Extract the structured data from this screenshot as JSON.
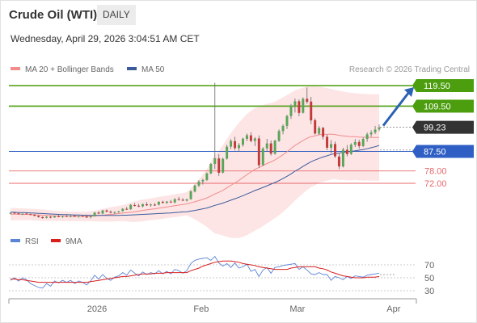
{
  "header": {
    "title": "Crude Oil (WTI)",
    "timeframe": "DAILY",
    "datetime": "Wednesday, April 29, 2026 3:04:51 AM CET"
  },
  "legend": {
    "ma20": "MA 20 + Bollinger Bands",
    "ma50": "MA 50",
    "credit": "Research © 2026 Trading Central",
    "rsi": "RSI",
    "rsi_ma": "9MA"
  },
  "colors": {
    "bull": "#5aa55a",
    "bear": "#c43a3a",
    "ma20": "#f08c8c",
    "bb_fill": "#fde0e0",
    "ma50": "#3a5a9c",
    "resistance": "#4c9e0e",
    "pivot": "#2f5fc4",
    "support": "#e8686c",
    "current": "#333333",
    "rsi": "#5b84d6",
    "rsi_ma": "#d91e1e",
    "arrow": "#2c62b3"
  },
  "chart_data": [
    {
      "type": "candlestick",
      "title": "",
      "x_labels": [
        "2026",
        "Feb",
        "Mar",
        "Apr"
      ],
      "ylim": [
        53,
        123
      ],
      "candles": [
        [
          57.6,
          58.0,
          57.0,
          57.6
        ],
        [
          57.7,
          57.9,
          57.2,
          57.4
        ],
        [
          57.4,
          57.8,
          56.8,
          57.0
        ],
        [
          57.1,
          57.4,
          56.6,
          57.2
        ],
        [
          57.3,
          57.7,
          56.9,
          57.1
        ],
        [
          57.0,
          57.3,
          56.5,
          56.7
        ],
        [
          56.8,
          57.0,
          56.0,
          56.2
        ],
        [
          56.2,
          56.4,
          55.3,
          55.6
        ],
        [
          55.6,
          55.9,
          54.8,
          55.1
        ],
        [
          55.2,
          56.0,
          54.9,
          55.8
        ],
        [
          55.7,
          56.1,
          55.0,
          55.3
        ],
        [
          55.4,
          56.2,
          55.2,
          56.0
        ],
        [
          56.0,
          56.6,
          55.5,
          55.7
        ],
        [
          55.8,
          56.3,
          55.2,
          56.1
        ],
        [
          56.1,
          56.5,
          55.6,
          55.9
        ],
        [
          55.9,
          56.4,
          55.4,
          56.2
        ],
        [
          56.3,
          56.7,
          55.7,
          55.8
        ],
        [
          55.8,
          56.3,
          55.3,
          56.1
        ],
        [
          56.1,
          56.5,
          55.6,
          55.9
        ],
        [
          55.9,
          56.3,
          55.1,
          55.4
        ],
        [
          55.5,
          56.1,
          55.0,
          55.9
        ],
        [
          56.0,
          58.0,
          55.8,
          57.8
        ],
        [
          57.8,
          58.4,
          57.0,
          57.3
        ],
        [
          57.3,
          59.1,
          57.0,
          58.8
        ],
        [
          58.8,
          59.3,
          57.9,
          58.2
        ],
        [
          58.2,
          58.8,
          57.4,
          57.7
        ],
        [
          57.8,
          58.3,
          57.0,
          58.1
        ],
        [
          58.0,
          58.6,
          57.6,
          58.4
        ],
        [
          58.5,
          59.9,
          58.2,
          59.6
        ],
        [
          59.6,
          60.5,
          59.0,
          59.3
        ],
        [
          59.4,
          61.9,
          59.1,
          61.5
        ],
        [
          61.4,
          62.4,
          60.7,
          61.1
        ],
        [
          61.1,
          62.0,
          60.4,
          60.7
        ],
        [
          60.8,
          62.1,
          60.3,
          61.9
        ],
        [
          61.8,
          62.8,
          61.0,
          61.3
        ],
        [
          61.3,
          62.1,
          60.6,
          61.7
        ],
        [
          61.6,
          62.4,
          61.0,
          61.5
        ],
        [
          61.6,
          63.3,
          61.2,
          63.0
        ],
        [
          63.0,
          63.6,
          62.1,
          62.5
        ],
        [
          62.5,
          63.4,
          62.0,
          63.1
        ],
        [
          63.1,
          63.9,
          62.4,
          62.7
        ],
        [
          62.7,
          64.7,
          62.3,
          64.3
        ],
        [
          64.3,
          65.4,
          63.6,
          64.1
        ],
        [
          64.0,
          64.8,
          63.3,
          63.6
        ],
        [
          63.6,
          64.5,
          63.1,
          64.2
        ],
        [
          64.3,
          68.5,
          64.0,
          68.1
        ],
        [
          68.0,
          71.4,
          67.6,
          70.9
        ],
        [
          70.9,
          73.5,
          70.2,
          72.8
        ],
        [
          72.9,
          74.2,
          71.4,
          73.6
        ],
        [
          73.6,
          77.3,
          73.1,
          76.8
        ],
        [
          76.8,
          81.8,
          76.4,
          81.4
        ],
        [
          81.4,
          120.9,
          79.0,
          84.2
        ],
        [
          84.1,
          86.2,
          75.6,
          77.1
        ],
        [
          77.2,
          84.5,
          76.8,
          83.9
        ],
        [
          84.0,
          90.7,
          83.5,
          89.8
        ],
        [
          89.8,
          93.5,
          88.6,
          92.6
        ],
        [
          92.5,
          94.6,
          88.0,
          89.1
        ],
        [
          89.1,
          91.6,
          87.4,
          90.6
        ],
        [
          90.7,
          94.2,
          89.8,
          93.7
        ],
        [
          93.6,
          96.2,
          92.5,
          95.4
        ],
        [
          95.3,
          96.8,
          91.9,
          92.6
        ],
        [
          92.6,
          94.5,
          90.1,
          93.8
        ],
        [
          93.8,
          95.3,
          79.5,
          80.8
        ],
        [
          80.9,
          89.6,
          80.4,
          88.9
        ],
        [
          89.0,
          93.6,
          87.7,
          91.4
        ],
        [
          91.4,
          92.8,
          85.5,
          86.4
        ],
        [
          86.4,
          93.2,
          85.9,
          92.7
        ],
        [
          92.6,
          98.2,
          92.1,
          97.4
        ],
        [
          97.4,
          100.7,
          95.8,
          99.9
        ],
        [
          99.9,
          105.3,
          98.4,
          104.7
        ],
        [
          104.7,
          110.6,
          103.3,
          109.9
        ],
        [
          109.9,
          113.2,
          106.4,
          111.9
        ],
        [
          111.9,
          112.8,
          104.6,
          106.2
        ],
        [
          106.3,
          113.8,
          105.9,
          113.1
        ],
        [
          113.1,
          118.6,
          110.7,
          111.6
        ],
        [
          111.7,
          114.0,
          100.8,
          102.6
        ],
        [
          102.7,
          103.6,
          95.6,
          96.2
        ],
        [
          96.1,
          99.8,
          95.5,
          98.9
        ],
        [
          98.9,
          99.5,
          93.3,
          94.6
        ],
        [
          94.6,
          95.7,
          88.1,
          89.3
        ],
        [
          89.3,
          93.0,
          86.5,
          91.1
        ],
        [
          91.1,
          92.3,
          84.3,
          85.1
        ],
        [
          85.0,
          86.3,
          78.9,
          80.2
        ],
        [
          80.2,
          89.3,
          79.7,
          88.4
        ],
        [
          88.3,
          90.6,
          85.1,
          86.2
        ],
        [
          86.3,
          91.5,
          85.8,
          90.8
        ],
        [
          90.7,
          93.5,
          89.6,
          92.1
        ],
        [
          92.1,
          93.2,
          88.9,
          90.1
        ],
        [
          90.1,
          94.3,
          89.6,
          93.6
        ],
        [
          93.6,
          96.7,
          92.2,
          95.8
        ],
        [
          95.8,
          97.8,
          94.6,
          96.7
        ],
        [
          96.7,
          99.9,
          95.9,
          98.1
        ],
        [
          98.2,
          100.6,
          97.3,
          99.23
        ]
      ],
      "ma20": [
        57.0,
        57.0,
        57.0,
        56.9,
        56.9,
        56.8,
        56.7,
        56.6,
        56.5,
        56.4,
        56.3,
        56.2,
        56.1,
        56.0,
        56.0,
        55.9,
        55.9,
        55.9,
        55.9,
        55.9,
        56.0,
        56.1,
        56.3,
        56.5,
        56.7,
        56.9,
        57.1,
        57.3,
        57.5,
        57.7,
        57.9,
        58.2,
        58.5,
        58.8,
        59.1,
        59.4,
        59.6,
        59.9,
        60.2,
        60.5,
        60.8,
        61.1,
        61.4,
        61.7,
        62.0,
        62.5,
        63.0,
        63.6,
        64.2,
        64.9,
        65.8,
        66.8,
        67.6,
        68.6,
        69.8,
        71.0,
        72.2,
        73.4,
        74.8,
        76.2,
        77.5,
        78.8,
        79.6,
        80.6,
        81.6,
        82.4,
        83.4,
        84.6,
        85.9,
        87.3,
        88.9,
        90.4,
        91.6,
        92.8,
        93.9,
        94.7,
        95.1,
        95.6,
        95.8,
        95.8,
        95.9,
        95.7,
        95.3,
        95.1,
        94.9,
        94.7,
        94.7,
        94.5,
        94.4,
        94.4,
        94.3,
        94.3,
        94.3
      ],
      "bb_upper": [
        60.0,
        60.0,
        59.9,
        59.8,
        59.7,
        59.6,
        59.5,
        59.4,
        59.3,
        59.1,
        58.9,
        58.7,
        58.5,
        58.4,
        58.3,
        58.2,
        58.2,
        58.2,
        58.2,
        58.2,
        58.4,
        58.7,
        59.1,
        59.6,
        60.0,
        60.4,
        60.7,
        61.0,
        61.4,
        61.9,
        62.6,
        63.2,
        63.7,
        64.1,
        64.4,
        64.7,
        65.0,
        65.4,
        65.7,
        66.0,
        66.3,
        66.7,
        67.0,
        67.3,
        67.7,
        69.5,
        71.6,
        73.9,
        76.3,
        79.0,
        82.4,
        86.0,
        88.0,
        90.6,
        93.6,
        96.5,
        99.0,
        101.4,
        103.6,
        105.6,
        107.2,
        108.6,
        109.2,
        110.0,
        110.7,
        111.0,
        111.7,
        112.7,
        113.8,
        114.9,
        116.1,
        117.2,
        117.8,
        118.5,
        119.1,
        119.3,
        119.2,
        119.0,
        118.7,
        118.3,
        117.9,
        117.4,
        117.0,
        116.6,
        116.3,
        116.0,
        115.8,
        115.6,
        115.5,
        115.4,
        115.3,
        115.3,
        115.3
      ],
      "bb_lower": [
        54.0,
        54.0,
        54.1,
        54.0,
        54.1,
        54.0,
        53.9,
        53.8,
        53.7,
        53.7,
        53.7,
        53.7,
        53.7,
        53.6,
        53.7,
        53.6,
        53.6,
        53.6,
        53.6,
        53.6,
        53.6,
        53.5,
        53.5,
        53.4,
        53.4,
        53.4,
        53.5,
        53.6,
        53.6,
        53.5,
        53.2,
        53.2,
        53.3,
        53.5,
        53.8,
        54.1,
        54.2,
        54.4,
        54.7,
        55.0,
        55.3,
        55.5,
        55.8,
        56.1,
        56.3,
        55.5,
        54.4,
        53.3,
        52.1,
        50.8,
        49.2,
        47.6,
        47.2,
        46.6,
        46.0,
        45.5,
        45.4,
        45.4,
        46.0,
        46.8,
        47.8,
        49.0,
        50.0,
        51.2,
        52.5,
        53.8,
        55.1,
        56.5,
        58.0,
        59.7,
        61.7,
        63.6,
        65.4,
        67.1,
        68.7,
        70.1,
        71.0,
        72.2,
        72.9,
        73.3,
        73.9,
        74.0,
        73.6,
        73.6,
        73.5,
        73.4,
        73.6,
        73.4,
        73.3,
        73.4,
        73.3,
        73.3,
        73.3
      ],
      "ma50": [
        58.0,
        57.9,
        57.8,
        57.8,
        57.7,
        57.6,
        57.5,
        57.4,
        57.3,
        57.2,
        57.1,
        57.0,
        56.9,
        56.8,
        56.8,
        56.7,
        56.6,
        56.6,
        56.5,
        56.5,
        56.4,
        56.4,
        56.4,
        56.4,
        56.4,
        56.4,
        56.4,
        56.4,
        56.5,
        56.5,
        56.6,
        56.7,
        56.8,
        56.9,
        57.0,
        57.1,
        57.2,
        57.3,
        57.4,
        57.5,
        57.6,
        57.8,
        57.9,
        58.1,
        58.2,
        58.5,
        58.8,
        59.2,
        59.6,
        60.0,
        60.6,
        61.3,
        61.8,
        62.4,
        63.1,
        63.8,
        64.5,
        65.2,
        66.0,
        66.8,
        67.6,
        68.5,
        69.2,
        70.0,
        70.8,
        71.6,
        72.4,
        73.3,
        74.3,
        75.4,
        76.6,
        77.9,
        79.0,
        80.2,
        81.4,
        82.5,
        83.3,
        84.1,
        84.8,
        85.4,
        86.0,
        86.4,
        86.7,
        87.0,
        87.3,
        87.5,
        87.8,
        88.1,
        88.4,
        88.8,
        89.3,
        89.8,
        90.4
      ],
      "levels": [
        {
          "role": "resistance",
          "label": "119.50",
          "value": 119.5
        },
        {
          "role": "resistance",
          "label": "109.50",
          "value": 109.5
        },
        {
          "role": "current",
          "label": "99.23",
          "value": 99.23
        },
        {
          "role": "pivot",
          "label": "87.50",
          "value": 87.5
        },
        {
          "role": "support",
          "label": "78.00",
          "value": 78.0
        },
        {
          "role": "support",
          "label": "72.00",
          "value": 72.0
        }
      ],
      "forecast_arrow": {
        "from": 99.23,
        "to": 119.5
      }
    },
    {
      "type": "line",
      "title": "",
      "ylim": [
        20,
        85
      ],
      "y_ticks": [
        70,
        50,
        30
      ],
      "series": [
        {
          "name": "RSI",
          "values": [
            46,
            50,
            45,
            50,
            47,
            41,
            38,
            35,
            34,
            41,
            37,
            45,
            42,
            46,
            43,
            46,
            41,
            45,
            43,
            39,
            45,
            54,
            48,
            55,
            49,
            46,
            51,
            53,
            58,
            54,
            62,
            57,
            53,
            59,
            55,
            58,
            56,
            61,
            56,
            60,
            56,
            63,
            61,
            57,
            61,
            72,
            77,
            79,
            80,
            81,
            77,
            83,
            73,
            68,
            72,
            66,
            73,
            65,
            67,
            71,
            60,
            63,
            52,
            62,
            66,
            57,
            66,
            67,
            69,
            70,
            71,
            72,
            63,
            67,
            62,
            56,
            55,
            58,
            55,
            55,
            46,
            52,
            50,
            47,
            52,
            49,
            53,
            52,
            51,
            54,
            55,
            56,
            57
          ]
        },
        {
          "name": "9MA",
          "values": [
            48,
            48,
            47,
            47,
            46,
            45,
            44,
            43,
            43,
            43,
            43,
            43,
            43,
            43,
            43,
            43,
            43,
            43,
            43,
            43,
            44,
            45,
            46,
            47,
            48,
            49,
            50,
            51,
            52,
            52,
            53,
            54,
            55,
            56,
            56,
            56,
            57,
            57,
            57,
            58,
            58,
            58,
            58,
            58,
            58,
            61,
            63,
            65,
            68,
            70,
            72,
            74,
            75,
            76,
            76,
            76,
            75,
            74,
            72,
            71,
            70,
            69,
            67,
            66,
            65,
            64,
            63,
            63,
            63,
            63,
            65,
            66,
            67,
            67,
            67,
            67,
            67,
            65,
            64,
            62,
            59,
            57,
            55,
            53,
            52,
            51,
            50,
            50,
            50,
            51,
            51,
            51,
            52
          ]
        }
      ]
    }
  ]
}
